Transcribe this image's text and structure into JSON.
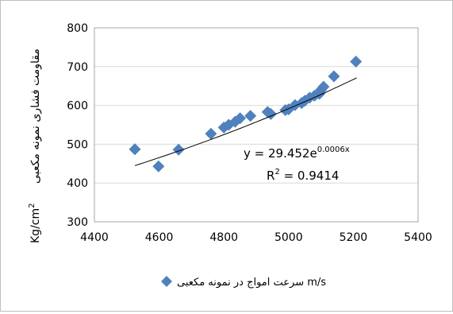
{
  "chart_data": {
    "type": "scatter",
    "title": "",
    "ylabel_main": "مقاومت فشاری نمونه مکعبی",
    "ylabel_unit": "Kg/cm",
    "ylabel_unit_sup": "2",
    "legend_label": "سرعت امواج در نمونه مکعبی m/s",
    "legend_position": "bottom",
    "equation_label": "y = 29.452e",
    "equation_exponent": "0.0006x",
    "r2_label": "R",
    "r2_sup": "2",
    "r2_value": " = 0.9414",
    "trendline": {
      "type": "exponential",
      "a": 29.452,
      "b": 0.0006,
      "x_from": 4525,
      "x_to": 5210
    },
    "xlim": [
      4400,
      5400
    ],
    "ylim": [
      300,
      800
    ],
    "x_ticks": [
      4400,
      4600,
      4800,
      5000,
      5200,
      5400
    ],
    "y_ticks": [
      300,
      400,
      500,
      600,
      700,
      800
    ],
    "x_tick_labels": [
      "4400",
      "4600",
      "4800",
      "5000",
      "5200",
      "5400"
    ],
    "y_tick_labels": [
      "300",
      "400",
      "500",
      "600",
      "700",
      "800"
    ],
    "grid": "horizontal",
    "marker_color": "#4f81bd",
    "series": [
      {
        "x": [
          4525,
          4598,
          4660,
          4760,
          4800,
          4815,
          4835,
          4850,
          4882,
          4935,
          4945,
          4990,
          5000,
          5020,
          5040,
          5050,
          5065,
          5080,
          5095,
          5100,
          5108,
          5140,
          5208
        ],
        "y": [
          487,
          443,
          486,
          527,
          543,
          550,
          558,
          567,
          573,
          583,
          578,
          588,
          590,
          601,
          606,
          612,
          620,
          625,
          630,
          640,
          648,
          675,
          713
        ]
      }
    ]
  }
}
